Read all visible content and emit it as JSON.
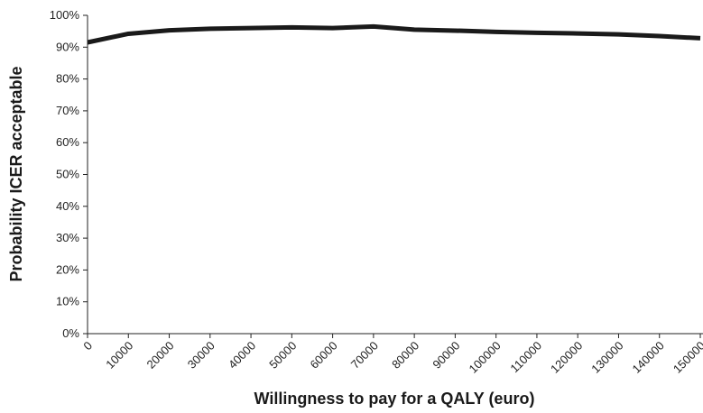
{
  "chart_data": {
    "type": "line",
    "xlabel": "Willingness to pay for a QALY (euro)",
    "ylabel": "Probability ICER acceptable",
    "x": [
      0,
      10000,
      20000,
      30000,
      40000,
      50000,
      60000,
      70000,
      80000,
      90000,
      100000,
      110000,
      120000,
      130000,
      140000,
      150000
    ],
    "series": [
      {
        "color": "#1a1a1a",
        "values": [
          91.5,
          94.2,
          95.3,
          95.8,
          96,
          96.2,
          96,
          96.5,
          95.5,
          95.2,
          94.8,
          94.5,
          94.3,
          94,
          93.5,
          92.8
        ]
      }
    ],
    "xlim": [
      0,
      150000
    ],
    "xticks": [
      0,
      10000,
      20000,
      30000,
      40000,
      50000,
      60000,
      70000,
      80000,
      90000,
      100000,
      110000,
      120000,
      130000,
      140000,
      150000
    ],
    "ylim": [
      0,
      100
    ],
    "yticks": [
      {
        "value": 0,
        "label": "0%"
      },
      {
        "value": 10,
        "label": "10%"
      },
      {
        "value": 20,
        "label": "20%"
      },
      {
        "value": 30,
        "label": "30%"
      },
      {
        "value": 40,
        "label": "40%"
      },
      {
        "value": 50,
        "label": "50%"
      },
      {
        "value": 60,
        "label": "60%"
      },
      {
        "value": 70,
        "label": "70%"
      },
      {
        "value": 80,
        "label": "80%"
      },
      {
        "value": 90,
        "label": "90%"
      },
      {
        "value": 100,
        "label": "100%"
      }
    ],
    "grid": false
  }
}
